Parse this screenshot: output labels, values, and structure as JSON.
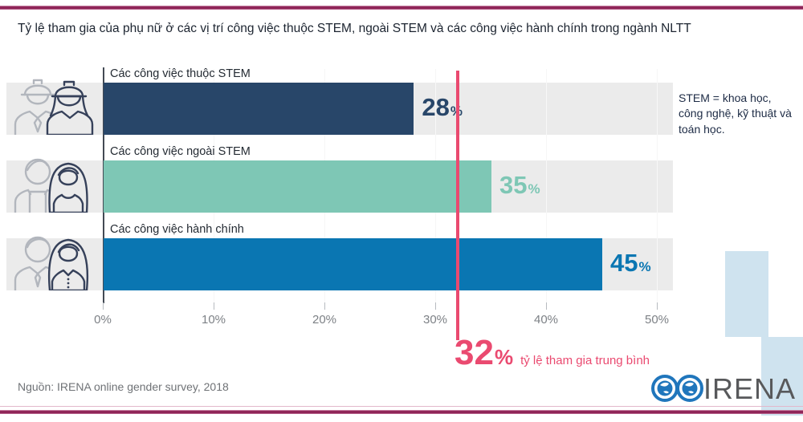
{
  "page": {
    "title": "Tỷ lệ tham gia của phụ nữ ở các vị trí công việc thuộc STEM, ngoài STEM và các công việc hành chính trong ngành NLTT",
    "note": "STEM = khoa học, công nghệ, kỹ thuật và toán học.",
    "source": "Nguồn: IRENA online gender survey, 2018",
    "logo_text": "IRENA",
    "accent_rule_color": "#8e2356",
    "decor_color": "#cfe3ef"
  },
  "chart_data": {
    "type": "bar",
    "orientation": "horizontal",
    "categories": [
      "Các công việc thuộc STEM",
      "Các công việc ngoài STEM",
      "Các công việc hành chính"
    ],
    "values": [
      28,
      35,
      45
    ],
    "unit": "%",
    "series_colors": [
      "#284669",
      "#7ec7b5",
      "#0a76b2"
    ],
    "row_band_color": "#ebebeb",
    "x_ticks": [
      "0%",
      "10%",
      "20%",
      "30%",
      "40%",
      "50%"
    ],
    "xlim": [
      0,
      50
    ],
    "grid": true,
    "legend": null,
    "average_line": {
      "value": 32,
      "number": "32",
      "unit": "%",
      "label": "tỷ lệ tham gia trung bình",
      "color": "#ea4a70"
    },
    "row_icons": [
      "stem-workers",
      "non-stem-workers",
      "admin-workers"
    ]
  }
}
